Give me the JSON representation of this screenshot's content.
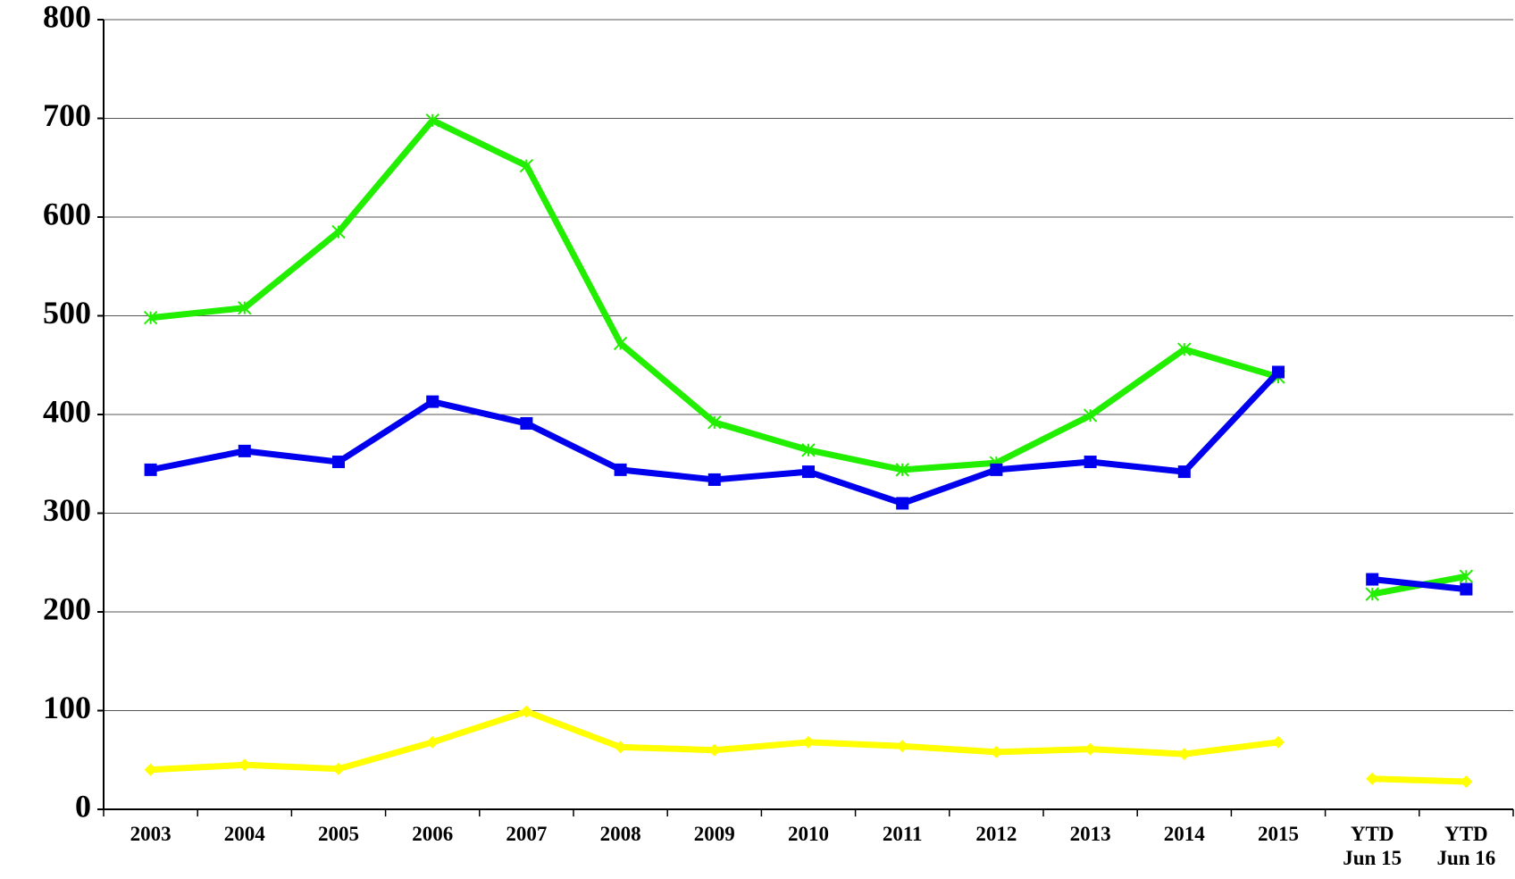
{
  "chart_data": {
    "type": "line",
    "categories": [
      "2003",
      "2004",
      "2005",
      "2006",
      "2007",
      "2008",
      "2009",
      "2010",
      "2011",
      "2012",
      "2013",
      "2014",
      "2015",
      "YTD\nJun 15",
      "YTD\nJun 16"
    ],
    "gap_after": 12,
    "series": [
      {
        "color": "#22ee00",
        "marker": "star",
        "values": [
          498,
          508,
          585,
          698,
          652,
          472,
          392,
          364,
          344,
          351,
          399,
          466,
          438,
          218,
          236
        ]
      },
      {
        "color": "#0000ee",
        "marker": "square",
        "values": [
          344,
          363,
          352,
          413,
          391,
          344,
          334,
          342,
          310,
          344,
          352,
          342,
          443,
          233,
          223
        ]
      },
      {
        "color": "#ffff00",
        "marker": "diamond",
        "values": [
          40,
          45,
          41,
          68,
          99,
          63,
          60,
          68,
          64,
          58,
          61,
          56,
          68,
          31,
          28
        ]
      }
    ],
    "ylim": [
      0,
      800
    ],
    "yticks": [
      0,
      100,
      200,
      300,
      400,
      500,
      600,
      700,
      800
    ],
    "grid": true
  }
}
